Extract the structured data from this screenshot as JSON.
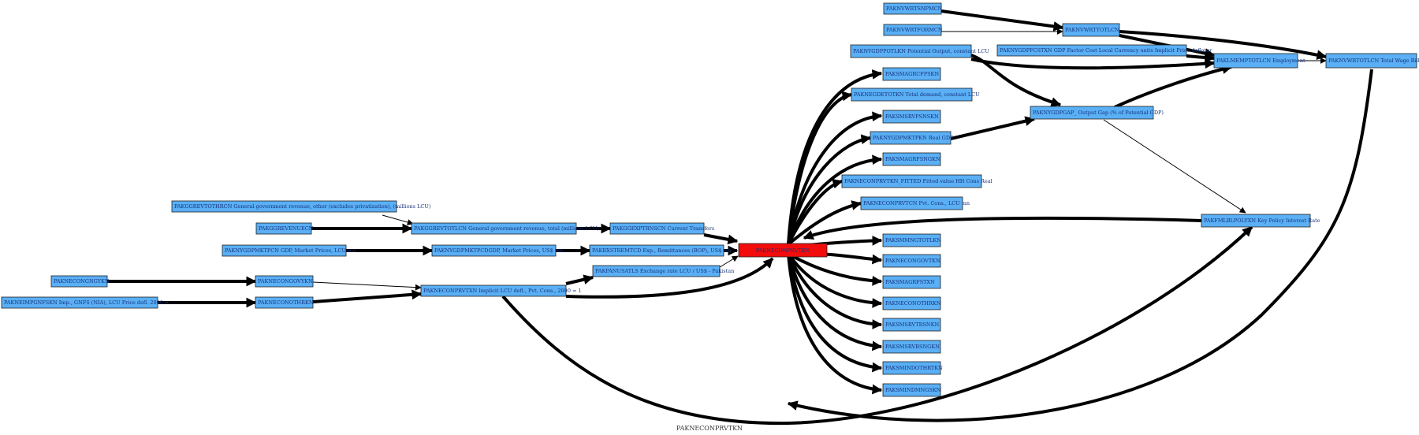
{
  "title": "PAKNECONPRVTKN",
  "colors": {
    "node_fill": "#5aaff5",
    "focus_fill": "#f20c0c",
    "edge": "#000000",
    "label": "#16337a"
  },
  "nodes": {
    "n_plfcurrent": "PAKNEIMPGNFSKN Imp., GNFS (NIA), LCU Price defl. 2000 = ...",
    "n_consnpv": "PAKNECONGNGYKN",
    "n_conothkn": "PAKNECONOTHRKN",
    "n_congovykn": "PAKNECONGOVYKN",
    "n_ggrevcn": "PAKGGREVTOTHRCN General government revenue, other (excludes privatization), (millions LCU)",
    "n_ggrevenue": "PAKGGREVENUECN",
    "n_ggrevtotl": "PAKGGREVTOTLCN General government revenue, total (millions LCU)",
    "n_gdpmkt": "PAKNYGDPMKTPCN GDP, Market Prices, LCU mn",
    "n_gdpusd": "PAKNYGDPMKTPCDGDP, Market Prices, US$ mn",
    "n_conprvt_sub": "PAKNECONPRVTXN Implicit LCU defl., Pvt. Cons., 2000 = 1",
    "n_ggexp": "PAKGGEXPTRNSCN Current Transfers",
    "n_bxremit": "PAKBXSTREMTCD Exp., Remittances (BOP), US$ mn",
    "n_pa": "PAKPANUSATLS Exchange rate LCU / US$ - Pakistan",
    "n_focus": "PAKNECONPRVTKN",
    "n_wrt1": "PAKNVWRTSNPMCN",
    "n_wrt2": "PAKNVWRTFORMCN",
    "n_gdppot": "PAKNYGDPPOTLKN Potential Output, constant LCU",
    "n_wrttotl": "PAKNVWRTTOTLCN",
    "n_gdpfc": "PAKNYGDPFCSTXN GDP Factor Cost Local Currency units Implicit Price deflator",
    "n_emp": "PAKLMEMPTOTLCN Employment",
    "n_wagebill": "PAKNVWRTOTLCN Total Wage Bill",
    "n_imagrcfp": "PAKSMAGRCFPSKN",
    "n_gdetot": "PAKNEGDETOTKN Total demand, constant LCU",
    "n_srvp": "PAKSMSRVPSNSKN",
    "n_gap": "PAKNYGDPGAP_ Output Gap (% of Potential GDP)",
    "n_realgdp": "PAKNYGDPMKTPKN Real GDP",
    "n_imagrfsn": "PAKSMAGRFSNGKN",
    "n_fitted": "PAKNECONPRVTKN_FITTED Fitted value HH Cons Real",
    "n_conprvt_lcu": "PAKNECONPRVTCN Pvt. Cons., LCU mn",
    "n_policy": "PAKFMLBLPOLYXN Key Policy Interest Rate",
    "n_mngtot": "PAKSMMNGTOTLKN",
    "n_congov2": "PAKNECONGOVTKN",
    "n_imagrfst": "PAKSMAGRFSTXN",
    "n_conothr": "PAKNECONOTHRKN",
    "n_srvtrsn": "PAKSMSRVTRSNKN",
    "n_srvbsn": "PAKSMSRVBSNGKN",
    "n_inddot": "PAKSMINDOTHRTKN",
    "n_indmng": "PAKSMINDMNGSKN"
  }
}
